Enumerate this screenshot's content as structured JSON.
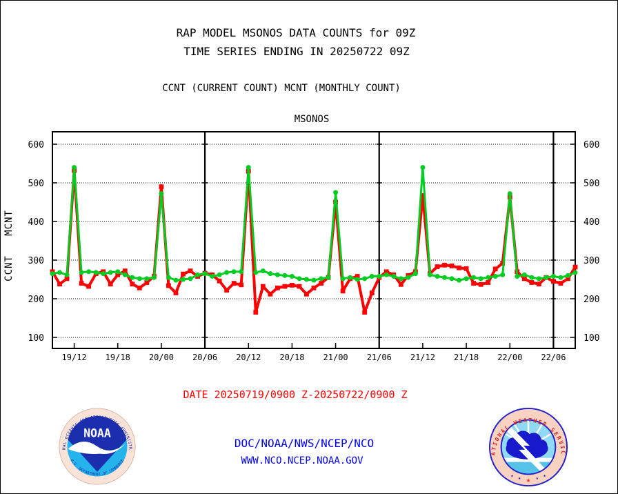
{
  "header": {
    "title_line1": "RAP MODEL MSONOS DATA COUNTS for 09Z",
    "title_line2": "TIME SERIES ENDING IN 20250722 09Z",
    "subtitle": "CCNT (CURRENT COUNT) MCNT (MONTHLY COUNT)"
  },
  "footer": {
    "date_range": "DATE 20250719/0900 Z-20250722/0900 Z",
    "org_line": "DOC/NOAA/NWS/NCEP/NCO",
    "url_line": "WWW.NCO.NCEP.NOAA.GOV"
  },
  "logos": {
    "noaa": {
      "ring_top": "NATIONAL OCEANIC AND ATMOSPHERIC ADMINISTRATION",
      "ring_bottom": "U.S. DEPARTMENT OF COMMERCE",
      "center": "NOAA"
    },
    "nws": {
      "ring": "NATIONAL WEATHER SERVICE",
      "star_left_1": "★",
      "star_left_2": "★",
      "star_center": "★",
      "star_right_1": "★",
      "star_right_2": "★"
    }
  },
  "colors": {
    "ccnt_red": "#ff0000",
    "mcnt_green": "#00cc22",
    "link_blue": "#0000ee",
    "axis_black": "#000000"
  },
  "chart_data": {
    "type": "line",
    "title": "MSONOS",
    "xlabel": "",
    "ylabel_left_labels": [
      {
        "text": "CCNT",
        "color": "#ff0000"
      },
      {
        "text": "MCNT",
        "color": "#00cc22"
      }
    ],
    "x_description": "hourly points from 19/09 UTC to 22/09 UTC (DD/HH)",
    "x_start_label": "19/09",
    "x_end_label": "22/09",
    "hours_total": 72,
    "x_tick_hours": [
      3,
      9,
      15,
      21,
      27,
      33,
      39,
      45,
      51,
      57,
      63,
      69
    ],
    "x_tick_labels": [
      "19/12",
      "19/18",
      "20/00",
      "20/06",
      "20/12",
      "20/18",
      "21/00",
      "21/06",
      "21/12",
      "21/18",
      "22/00",
      "22/06"
    ],
    "divider_hours": [
      21,
      45,
      69
    ],
    "yticks": [
      100,
      200,
      300,
      400,
      500,
      600
    ],
    "ylim": [
      70,
      632
    ],
    "grid": "dotted-horizontal",
    "legend_position": "none",
    "series": [
      {
        "name": "CCNT",
        "color": "#ff0000",
        "marker": "square",
        "values": [
          270,
          238,
          252,
          532,
          240,
          232,
          265,
          270,
          238,
          262,
          272,
          238,
          228,
          242,
          258,
          490,
          234,
          215,
          264,
          272,
          258,
          266,
          262,
          246,
          222,
          240,
          236,
          530,
          165,
          232,
          212,
          228,
          232,
          235,
          232,
          212,
          228,
          240,
          255,
          450,
          220,
          252,
          258,
          165,
          215,
          255,
          270,
          262,
          237,
          260,
          270,
          467,
          265,
          283,
          287,
          285,
          280,
          278,
          240,
          237,
          242,
          277,
          292,
          463,
          270,
          252,
          242,
          238,
          255,
          245,
          240,
          252,
          282
        ]
      },
      {
        "name": "MCNT",
        "color": "#00cc22",
        "marker": "circle",
        "values": [
          265,
          268,
          262,
          540,
          268,
          270,
          268,
          265,
          268,
          270,
          262,
          255,
          252,
          252,
          255,
          472,
          255,
          248,
          250,
          252,
          262,
          265,
          258,
          262,
          268,
          270,
          270,
          540,
          268,
          272,
          265,
          262,
          260,
          258,
          252,
          250,
          248,
          252,
          255,
          475,
          252,
          255,
          250,
          252,
          258,
          258,
          262,
          258,
          252,
          255,
          265,
          540,
          262,
          258,
          255,
          252,
          248,
          252,
          255,
          252,
          255,
          258,
          262,
          472,
          258,
          262,
          255,
          252,
          255,
          258,
          255,
          260,
          268
        ]
      }
    ]
  }
}
